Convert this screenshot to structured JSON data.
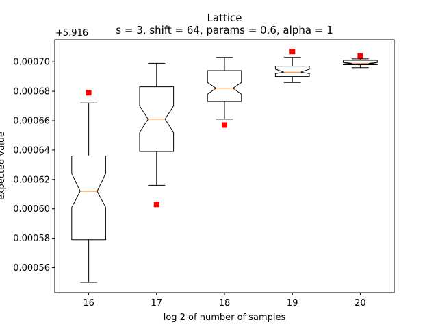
{
  "chart_data": {
    "type": "boxplot",
    "title": "Lattice",
    "subtitle": "s = 3, shift = 64, params = 0.6, alpha = 1",
    "xlabel": "log 2 of number of samples",
    "ylabel": "expected value",
    "y_offset_label": "+5.916",
    "categories": [
      "16",
      "17",
      "18",
      "19",
      "20"
    ],
    "ylim": [
      0.000543,
      0.000715
    ],
    "yticks": [
      "0.00056",
      "0.00058",
      "0.00060",
      "0.00062",
      "0.00064",
      "0.00066",
      "0.00068",
      "0.00070"
    ],
    "ytick_values": [
      0.00056,
      0.00058,
      0.0006,
      0.00062,
      0.00064,
      0.00066,
      0.00068,
      0.0007
    ],
    "notched": true,
    "boxes": [
      {
        "x": "16",
        "whislo": 0.00055,
        "q1": 0.000579,
        "med": 0.000612,
        "q3": 0.000636,
        "whishi": 0.000672,
        "notch_lo": 0.000601,
        "notch_hi": 0.000624
      },
      {
        "x": "17",
        "whislo": 0.000616,
        "q1": 0.000639,
        "med": 0.000661,
        "q3": 0.000683,
        "whishi": 0.000699,
        "notch_lo": 0.000652,
        "notch_hi": 0.00067
      },
      {
        "x": "18",
        "whislo": 0.000661,
        "q1": 0.000673,
        "med": 0.000682,
        "q3": 0.000694,
        "whishi": 0.000703,
        "notch_lo": 0.000678,
        "notch_hi": 0.000686
      },
      {
        "x": "19",
        "whislo": 0.000686,
        "q1": 0.00069,
        "med": 0.000693,
        "q3": 0.000697,
        "whishi": 0.000703,
        "notch_lo": 0.000692,
        "notch_hi": 0.000695
      },
      {
        "x": "20",
        "whislo": 0.000696,
        "q1": 0.000698,
        "med": 0.000699,
        "q3": 0.000701,
        "whishi": 0.000702,
        "notch_lo": 0.0006985,
        "notch_hi": 0.0006995
      }
    ],
    "markers": {
      "values": [
        0.000679,
        0.000603,
        0.000657,
        0.000707,
        0.000704
      ],
      "color": "#ff0000",
      "shape": "square"
    },
    "colors": {
      "box": "#000000",
      "median": "#ff7f0e"
    }
  }
}
